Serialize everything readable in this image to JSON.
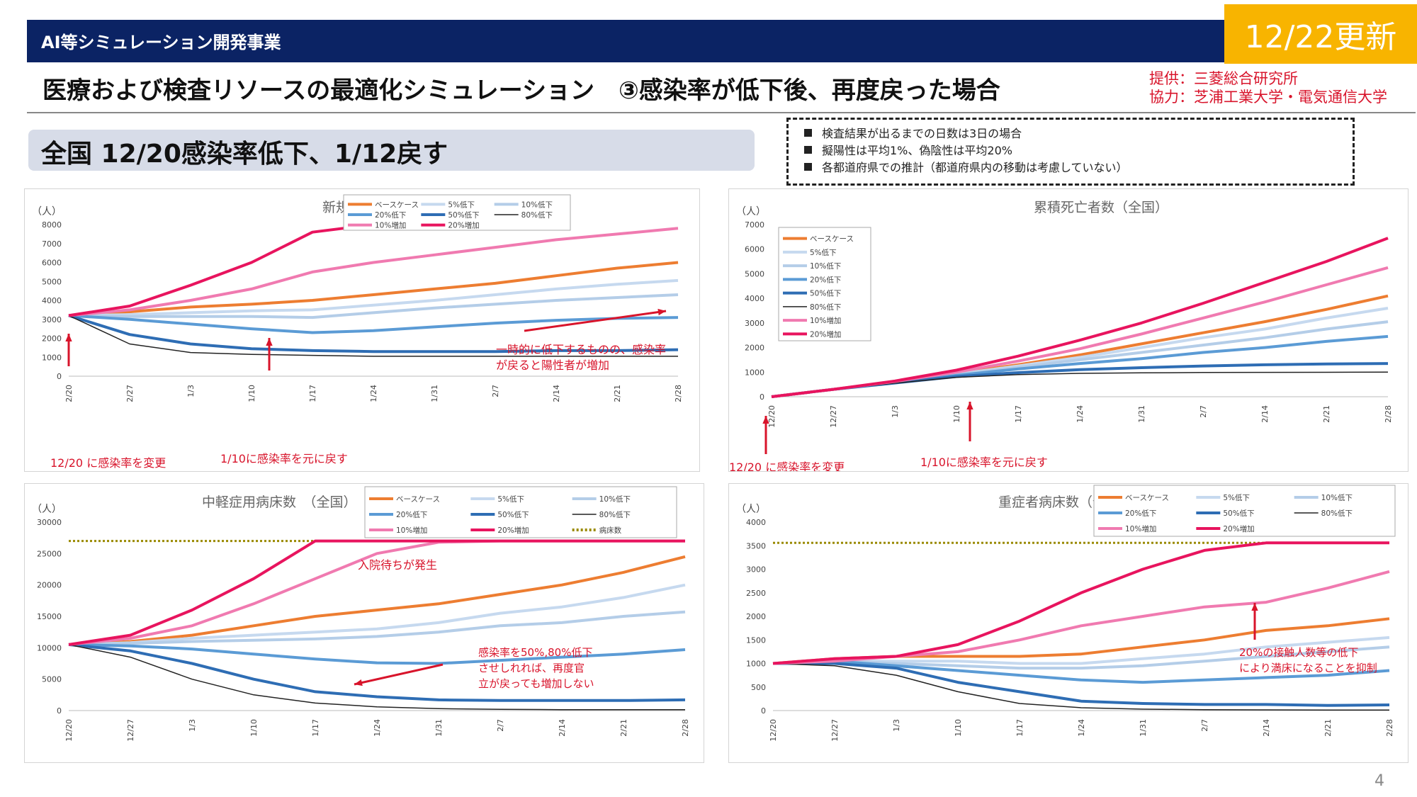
{
  "header": {
    "banner": "AI等シミュレーション開発事業",
    "update": "12/22更新",
    "title": "医療および検査リソースの最適化シミュレーション　③感染率が低下後、再度戻った場合",
    "credit_provider": "提供：三菱総合研究所",
    "credit_cooperation": "協力：芝浦工業大学・電気通信大学",
    "subtitle": "全国 12/20感染率低下、1/12戻す",
    "page_number": "4"
  },
  "notes": [
    "検査結果が出るまでの日数は3日の場合",
    "擬陽性は平均1%、偽陰性は平均20%",
    "各都道府県での推計（都道府県内の移動は考慮していない）"
  ],
  "colors": {
    "banner": "#0b2364",
    "badge": "#f8b400",
    "annotation": "#d8142b",
    "base": "#ed7d31",
    "low5": "#c6d9ef",
    "low10": "#b4cde8",
    "low20": "#5b9bd5",
    "low50": "#2e6db4",
    "low80": "#222222",
    "up10": "#f07ab0",
    "up20": "#e8145e",
    "beds": "#9a8a00"
  },
  "chart_data": [
    {
      "id": "new-positive",
      "type": "line",
      "title": "新規陽性者数（全国）",
      "ylabel": "（人）",
      "ylim": [
        0,
        8000
      ],
      "yticks": [
        0,
        1000,
        2000,
        3000,
        4000,
        5000,
        6000,
        7000,
        8000
      ],
      "x": [
        "2/20",
        "2/27",
        "1/3",
        "1/10",
        "1/17",
        "1/24",
        "1/31",
        "2/7",
        "2/14",
        "2/21",
        "2/28"
      ],
      "legend": [
        "ベースケース",
        "5%低下",
        "10%低下",
        "20%低下",
        "50%低下",
        "80%低下",
        "10%増加",
        "20%増加"
      ],
      "series": [
        {
          "name": "ベースケース",
          "key": "base",
          "values": [
            3200,
            3400,
            3650,
            3800,
            4000,
            4300,
            4600,
            4900,
            5300,
            5700,
            6000
          ]
        },
        {
          "name": "5%低下",
          "key": "low5",
          "values": [
            3200,
            3250,
            3350,
            3450,
            3500,
            3750,
            4000,
            4300,
            4600,
            4850,
            5050
          ]
        },
        {
          "name": "10%低下",
          "key": "low10",
          "values": [
            3200,
            3150,
            3150,
            3150,
            3100,
            3350,
            3600,
            3800,
            4000,
            4150,
            4300
          ]
        },
        {
          "name": "20%低下",
          "key": "low20",
          "values": [
            3200,
            3000,
            2750,
            2500,
            2300,
            2400,
            2600,
            2800,
            2950,
            3050,
            3100
          ]
        },
        {
          "name": "50%低下",
          "key": "low50",
          "values": [
            3200,
            2200,
            1700,
            1450,
            1350,
            1300,
            1300,
            1300,
            1350,
            1350,
            1400
          ]
        },
        {
          "name": "80%低下",
          "key": "low80",
          "values": [
            3200,
            1700,
            1250,
            1150,
            1100,
            1050,
            1050,
            1050,
            1050,
            1050,
            1050
          ]
        },
        {
          "name": "10%増加",
          "key": "up10",
          "values": [
            3200,
            3500,
            4000,
            4600,
            5500,
            6000,
            6400,
            6800,
            7200,
            7500,
            7800
          ]
        },
        {
          "name": "20%増加",
          "key": "up20",
          "values": [
            3200,
            3700,
            4800,
            6000,
            7600,
            8000,
            null,
            null,
            null,
            null,
            null
          ]
        }
      ],
      "annotations": [
        "一時的に低下するものの、感染率が戻ると陽性者が増加",
        "12/20 に感染率を変更",
        "1/10に感染率を元に戻す"
      ]
    },
    {
      "id": "cumulative-deaths",
      "type": "line",
      "title": "累積死亡者数（全国）",
      "ylabel": "（人）",
      "ylim": [
        0,
        7000
      ],
      "yticks": [
        0,
        1000,
        2000,
        3000,
        4000,
        5000,
        6000,
        7000
      ],
      "x": [
        "12/20",
        "12/27",
        "1/3",
        "1/10",
        "1/17",
        "1/24",
        "1/31",
        "2/7",
        "2/14",
        "2/21",
        "2/28"
      ],
      "legend": [
        "ベースケース",
        "5%低下",
        "10%低下",
        "20%低下",
        "50%低下",
        "80%低下",
        "10%増加",
        "20%増加"
      ],
      "series": [
        {
          "name": "ベースケース",
          "key": "base",
          "values": [
            0,
            300,
            600,
            950,
            1300,
            1700,
            2150,
            2600,
            3050,
            3550,
            4100
          ]
        },
        {
          "name": "5%低下",
          "key": "low5",
          "values": [
            0,
            300,
            600,
            920,
            1250,
            1600,
            2000,
            2400,
            2750,
            3200,
            3600
          ]
        },
        {
          "name": "10%低下",
          "key": "low10",
          "values": [
            0,
            300,
            600,
            900,
            1200,
            1500,
            1800,
            2100,
            2400,
            2750,
            3050
          ]
        },
        {
          "name": "20%低下",
          "key": "low20",
          "values": [
            0,
            300,
            580,
            870,
            1130,
            1350,
            1550,
            1800,
            2000,
            2250,
            2450
          ]
        },
        {
          "name": "50%低下",
          "key": "low50",
          "values": [
            0,
            300,
            560,
            820,
            980,
            1100,
            1180,
            1250,
            1300,
            1330,
            1350
          ]
        },
        {
          "name": "80%低下",
          "key": "low80",
          "values": [
            0,
            300,
            550,
            790,
            900,
            950,
            970,
            985,
            990,
            995,
            1000
          ]
        },
        {
          "name": "10%増加",
          "key": "up10",
          "values": [
            0,
            300,
            620,
            1000,
            1450,
            1950,
            2550,
            3200,
            3850,
            4550,
            5250
          ]
        },
        {
          "name": "20%増加",
          "key": "up20",
          "values": [
            0,
            300,
            640,
            1080,
            1650,
            2300,
            3000,
            3800,
            4650,
            5500,
            6450
          ]
        }
      ],
      "annotations": [
        "12/20 に感染率を変更",
        "1/10に感染率を元に戻す"
      ]
    },
    {
      "id": "mild-beds",
      "type": "line",
      "title": "中軽症用病床数　（全国）",
      "ylabel": "（人）",
      "ylim": [
        0,
        30000
      ],
      "yticks": [
        0,
        5000,
        10000,
        15000,
        20000,
        25000,
        30000
      ],
      "x": [
        "12/20",
        "12/27",
        "1/3",
        "1/10",
        "1/17",
        "1/24",
        "1/31",
        "2/7",
        "2/14",
        "2/21",
        "2/28"
      ],
      "legend": [
        "ベースケース",
        "5%低下",
        "10%低下",
        "20%低下",
        "50%低下",
        "80%低下",
        "10%増加",
        "20%増加",
        "病床数"
      ],
      "capacity": 27000,
      "series": [
        {
          "name": "ベースケース",
          "key": "base",
          "values": [
            10500,
            11000,
            12000,
            13500,
            15000,
            16000,
            17000,
            18500,
            20000,
            22000,
            24500
          ]
        },
        {
          "name": "5%低下",
          "key": "low5",
          "values": [
            10500,
            10800,
            11500,
            12000,
            12500,
            13000,
            14000,
            15500,
            16500,
            18000,
            20000
          ]
        },
        {
          "name": "10%低下",
          "key": "low10",
          "values": [
            10500,
            10700,
            11000,
            11200,
            11400,
            11800,
            12500,
            13500,
            14000,
            15000,
            15700
          ]
        },
        {
          "name": "20%低下",
          "key": "low20",
          "values": [
            10500,
            10300,
            9800,
            9000,
            8200,
            7600,
            7500,
            8000,
            8500,
            9000,
            9700
          ]
        },
        {
          "name": "50%低下",
          "key": "low50",
          "values": [
            10500,
            9500,
            7500,
            5000,
            3000,
            2200,
            1700,
            1600,
            1600,
            1600,
            1700
          ]
        },
        {
          "name": "80%低下",
          "key": "low80",
          "values": [
            10500,
            8500,
            5000,
            2500,
            1200,
            600,
            300,
            200,
            150,
            150,
            150
          ]
        },
        {
          "name": "10%増加",
          "key": "up10",
          "values": [
            10500,
            11500,
            13500,
            17000,
            21000,
            25000,
            26800,
            27000,
            27000,
            27000,
            27000
          ]
        },
        {
          "name": "20%増加",
          "key": "up20",
          "values": [
            10500,
            12000,
            16000,
            21000,
            27000,
            27000,
            27000,
            27000,
            27000,
            27000,
            27000
          ]
        }
      ],
      "annotations": [
        "入院待ちが発生",
        "感染率を50%,80%低下させしれれば、再度官立が戻っても増加しない"
      ]
    },
    {
      "id": "severe-beds",
      "type": "line",
      "title": "重症者病床数（全国）",
      "ylabel": "（人）",
      "ylim": [
        0,
        4000
      ],
      "yticks": [
        0,
        500,
        1000,
        1500,
        2000,
        2500,
        3000,
        3500,
        4000
      ],
      "x": [
        "12/20",
        "12/27",
        "1/3",
        "1/10",
        "1/17",
        "1/24",
        "1/31",
        "2/7",
        "2/14",
        "2/21",
        "2/28"
      ],
      "legend": [
        "ベースケース",
        "5%低下",
        "10%低下",
        "20%低下",
        "50%低下",
        "80%低下",
        "10%増加",
        "20%増加"
      ],
      "capacity": 3560,
      "series": [
        {
          "name": "ベースケース",
          "key": "base",
          "values": [
            1000,
            1100,
            1150,
            1150,
            1150,
            1200,
            1350,
            1500,
            1700,
            1800,
            1950
          ]
        },
        {
          "name": "5%低下",
          "key": "low5",
          "values": [
            1000,
            1050,
            1050,
            1050,
            1000,
            1000,
            1100,
            1200,
            1350,
            1450,
            1550
          ]
        },
        {
          "name": "10%低下",
          "key": "low10",
          "values": [
            1000,
            1050,
            1000,
            950,
            900,
            900,
            950,
            1050,
            1150,
            1250,
            1350
          ]
        },
        {
          "name": "20%低下",
          "key": "low20",
          "values": [
            1000,
            1050,
            950,
            850,
            750,
            650,
            600,
            650,
            700,
            750,
            850
          ]
        },
        {
          "name": "50%低下",
          "key": "low50",
          "values": [
            1000,
            1000,
            900,
            600,
            400,
            200,
            150,
            130,
            130,
            110,
            120
          ]
        },
        {
          "name": "80%低下",
          "key": "low80",
          "values": [
            1000,
            950,
            750,
            400,
            150,
            60,
            30,
            20,
            15,
            10,
            10
          ]
        },
        {
          "name": "10%増加",
          "key": "up10",
          "values": [
            1000,
            1050,
            1150,
            1250,
            1500,
            1800,
            2000,
            2200,
            2300,
            2600,
            2950
          ]
        },
        {
          "name": "20%増加",
          "key": "up20",
          "values": [
            1000,
            1100,
            1150,
            1400,
            1900,
            2500,
            3000,
            3400,
            3560,
            3560,
            3560
          ]
        }
      ],
      "annotations": [
        "20%の接触人数等の低下により満床になることを抑制"
      ]
    }
  ]
}
